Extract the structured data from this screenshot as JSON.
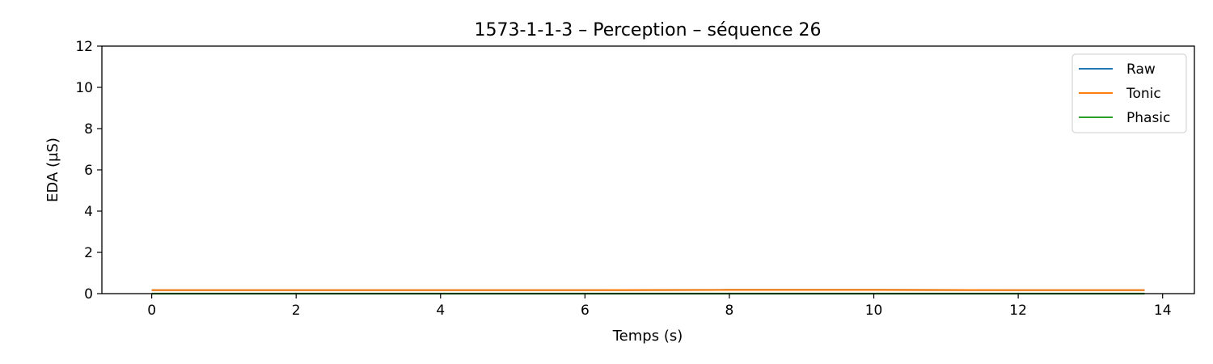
{
  "chart_data": {
    "type": "line",
    "title": "1573-1-1-3 – Perception – séquence 26",
    "xlabel": "Temps (s)",
    "ylabel": "EDA (µS)",
    "xlim": [
      -0.69,
      14.44
    ],
    "ylim": [
      0,
      12
    ],
    "xticks": [
      0,
      2,
      4,
      6,
      8,
      10,
      12,
      14
    ],
    "yticks": [
      0,
      2,
      4,
      6,
      8,
      10,
      12
    ],
    "grid": false,
    "legend_position": "top-right",
    "series": [
      {
        "name": "Raw",
        "color": "#1f77b4",
        "x": [
          0,
          2,
          4,
          6,
          8,
          10,
          12,
          13.75
        ],
        "y": [
          0.17,
          0.17,
          0.17,
          0.17,
          0.18,
          0.18,
          0.17,
          0.17
        ]
      },
      {
        "name": "Tonic",
        "color": "#ff7f0e",
        "x": [
          0,
          2,
          4,
          6,
          8,
          10,
          12,
          13.75
        ],
        "y": [
          0.17,
          0.17,
          0.17,
          0.17,
          0.18,
          0.18,
          0.17,
          0.17
        ]
      },
      {
        "name": "Phasic",
        "color": "#2ca02c",
        "x": [
          0,
          2,
          4,
          6,
          8,
          10,
          12,
          13.75
        ],
        "y": [
          0,
          0,
          0,
          0,
          0,
          0,
          0,
          0
        ]
      }
    ]
  }
}
